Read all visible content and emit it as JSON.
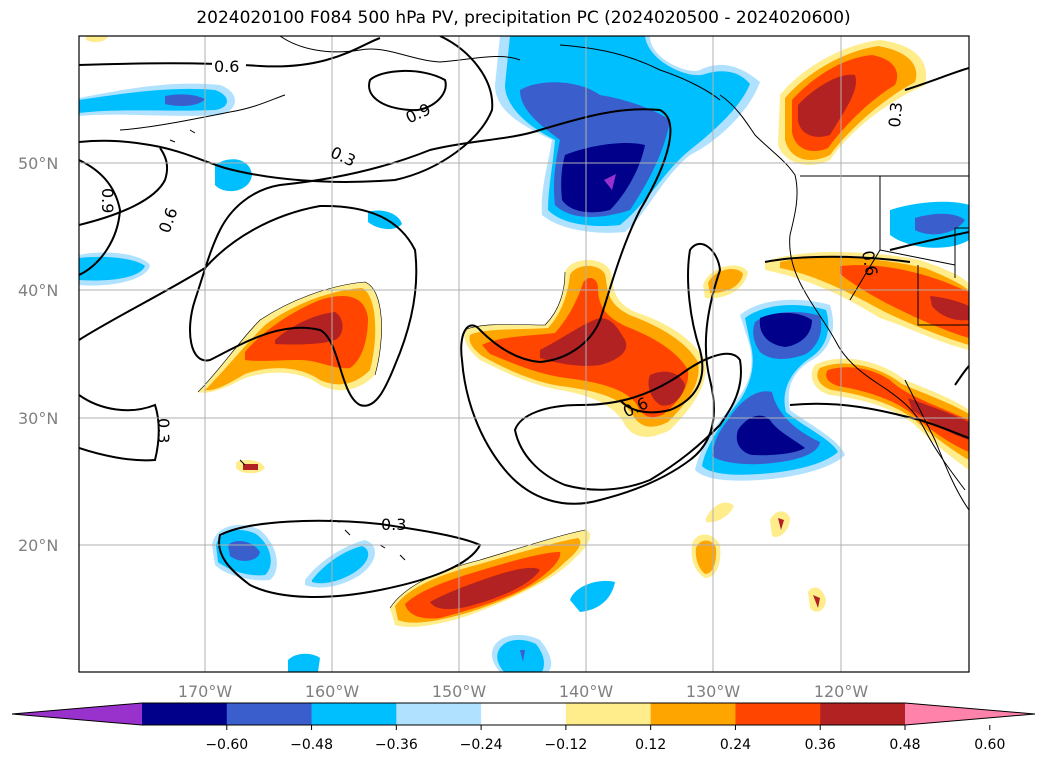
{
  "title": "2024020100 F084 500 hPa PV, precipitation PC (2024020500 - 2024020600)",
  "lat_labels": [
    "50°N",
    "40°N",
    "30°N",
    "20°N"
  ],
  "lon_labels": [
    "170°W",
    "160°W",
    "150°W",
    "140°W",
    "130°W",
    "120°W"
  ],
  "contour_labels": [
    "0.6",
    "0.9",
    "0.3",
    "0.6",
    "0.9",
    "0.3",
    "0.6",
    "0.3",
    "0.3",
    "0.6"
  ],
  "colorbar": {
    "tick_labels": [
      "−0.60",
      "−0.48",
      "−0.36",
      "−0.24",
      "−0.12",
      "0.12",
      "0.24",
      "0.36",
      "0.48",
      "0.60"
    ],
    "colors": [
      "#9932cc",
      "#00008b",
      "#3a5fcd",
      "#00bfff",
      "#b0e2ff",
      "#ffffff",
      "#ffec8b",
      "#ffa500",
      "#ff4500",
      "#b22222",
      "#ff82ab"
    ]
  },
  "palette": {
    "neg_purple": "#9932cc",
    "neg_navy": "#00008b",
    "neg_blue": "#3a5fcd",
    "neg_sky": "#00bfff",
    "neg_light": "#b0e2ff",
    "pos_yellow": "#ffec8b",
    "pos_orange": "#ffa500",
    "pos_red": "#ff4500",
    "pos_brick": "#b22222",
    "pos_pink": "#ff82ab"
  }
}
